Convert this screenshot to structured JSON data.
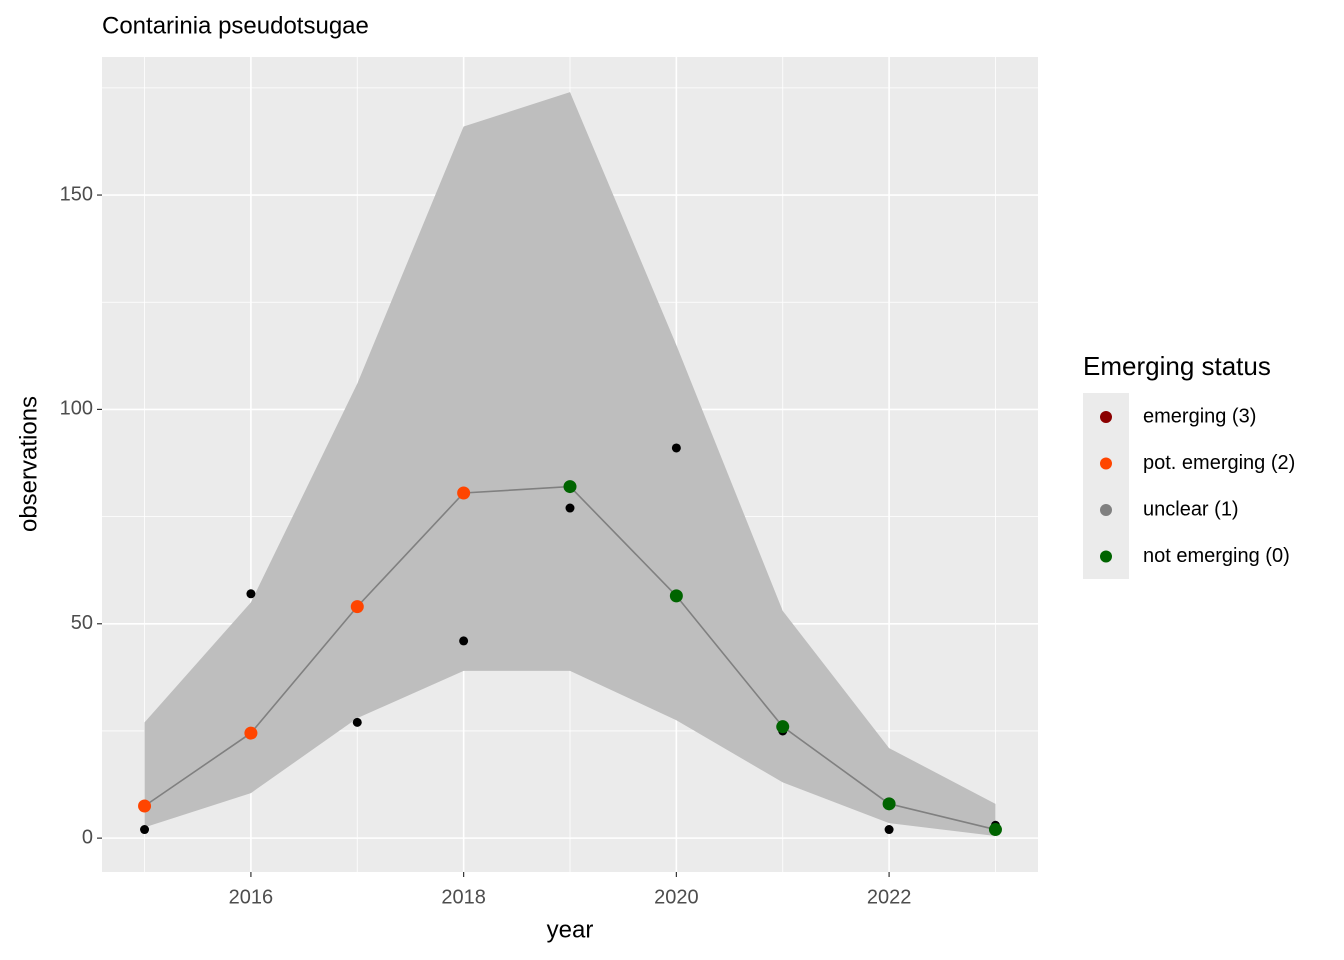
{
  "chart_data": {
    "type": "line",
    "title": "Contarinia pseudotsugae",
    "x_label": "year",
    "y_label": "observations",
    "x": [
      2015,
      2016,
      2017,
      2018,
      2019,
      2020,
      2021,
      2022,
      2023
    ],
    "observed": {
      "color": "#000000",
      "values": [
        2,
        57,
        27,
        46,
        77,
        91,
        25,
        2,
        3
      ]
    },
    "fit": {
      "color": "#808080",
      "values": [
        7.5,
        24.5,
        54,
        80.5,
        82,
        56.5,
        26,
        8,
        2
      ],
      "point_colors": [
        "#ff4500",
        "#ff4500",
        "#ff4500",
        "#ff4500",
        "#006400",
        "#006400",
        "#006400",
        "#006400",
        "#006400"
      ]
    },
    "band": {
      "color": "#bebebe",
      "upper": [
        27,
        55,
        106,
        166,
        174,
        115,
        53,
        21,
        8
      ],
      "lower": [
        2.5,
        10.5,
        28,
        39,
        39,
        27.5,
        13,
        3.5,
        0.5
      ]
    },
    "xlim": [
      2014.6,
      2023.4
    ],
    "xticks": [
      2016,
      2018,
      2020,
      2022
    ],
    "xminor": [
      2015,
      2017,
      2019,
      2021,
      2023
    ],
    "ylim": [
      -7.9,
      182.2
    ],
    "yticks": [
      0,
      50,
      100,
      150
    ],
    "yminor": [
      25,
      75,
      125,
      175
    ],
    "grid": true,
    "legend": {
      "title": "Emerging status",
      "position": "right",
      "items": [
        {
          "name": "emerging (3)",
          "color": "#8b0000"
        },
        {
          "name": "pot. emerging (2)",
          "color": "#ff4500"
        },
        {
          "name": "unclear (1)",
          "color": "#808080"
        },
        {
          "name": "not emerging (0)",
          "color": "#006400"
        }
      ]
    }
  }
}
